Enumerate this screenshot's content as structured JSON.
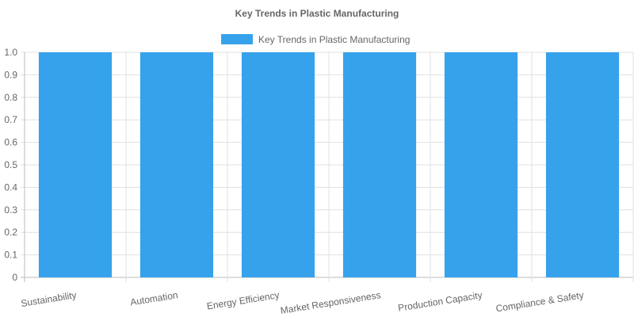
{
  "chart_data": {
    "type": "bar",
    "title": "Key Trends in Plastic Manufacturing",
    "categories": [
      "Sustainability",
      "Automation",
      "Energy Efficiency",
      "Market Responsiveness",
      "Production Capacity",
      "Compliance & Safety"
    ],
    "series": [
      {
        "name": "Key Trends in Plastic Manufacturing",
        "values": [
          1,
          1,
          1,
          1,
          1,
          1
        ],
        "color": "#36a2eb"
      }
    ],
    "ylim": [
      0,
      1
    ],
    "yticks": [
      "0",
      "0.1",
      "0.2",
      "0.3",
      "0.4",
      "0.5",
      "0.6",
      "0.7",
      "0.8",
      "0.9",
      "1.0"
    ],
    "grid": true,
    "legend_position": "top"
  }
}
